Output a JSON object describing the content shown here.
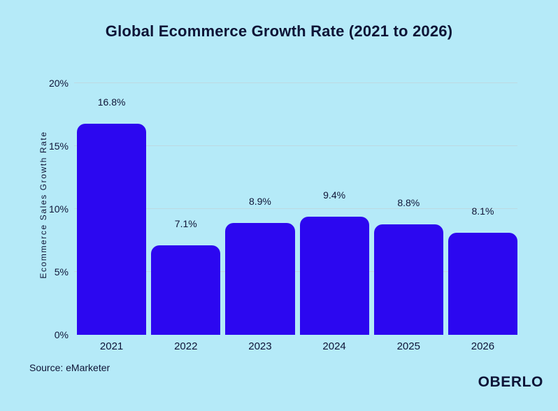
{
  "title": "Global Ecommerce Growth Rate (2021 to 2026)",
  "source": "Source: eMarketer",
  "brand": "OBERLO",
  "chart_data": {
    "type": "bar",
    "title": "Global Ecommerce Growth Rate (2021 to 2026)",
    "categories": [
      "2021",
      "2022",
      "2023",
      "2024",
      "2025",
      "2026"
    ],
    "values": [
      16.8,
      7.1,
      8.9,
      9.4,
      8.8,
      8.1
    ],
    "value_labels": [
      "16.8%",
      "7.1%",
      "8.9%",
      "9.4%",
      "8.8%",
      "8.1%"
    ],
    "xlabel": "",
    "ylabel": "Ecommerce Sales Growth Rate",
    "ylim": [
      0,
      20
    ],
    "ytick_step": 5,
    "ytick_labels": [
      "0%",
      "5%",
      "10%",
      "15%",
      "20%"
    ],
    "grid": true,
    "legend": false
  },
  "colors": {
    "background": "#b5eaf8",
    "bar": "#2c07f0",
    "text": "#0e1436",
    "gridline": "#bdd9e2"
  }
}
